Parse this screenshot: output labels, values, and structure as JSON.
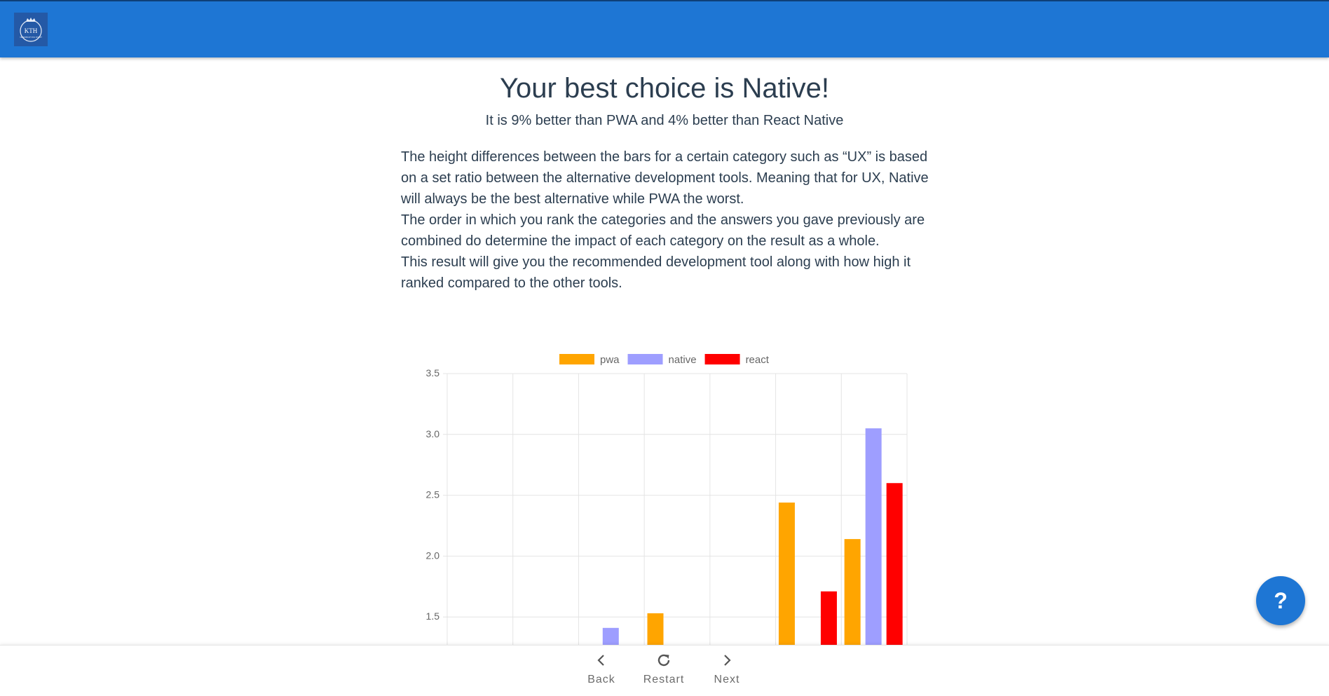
{
  "header": {
    "logo_text": "KTH",
    "logo_subtext": "VETENSKAP OCH KONST",
    "colors": {
      "bar": "#1e76d4",
      "logo_bg": "#2459a6"
    }
  },
  "main": {
    "title": "Your best choice is Native!",
    "subtitle": "It is 9% better than PWA and 4% better than React Native",
    "paragraphs": [
      "The height differences between the bars for a certain category such as “UX” is based on a set ratio between the alternative development tools. Meaning that for UX, Native will always be the best alternative while PWA the worst.",
      "The order in which you rank the categories and the answers you gave previously are combined do determine the impact of each category on the result as a whole.",
      "This result will give you the recommended development tool along with how high it ranked compared to the other tools."
    ]
  },
  "chart_data": {
    "type": "bar",
    "groups": 7,
    "series": [
      {
        "name": "pwa",
        "color": "#ffa500",
        "values": [
          null,
          null,
          null,
          1.53,
          null,
          2.44,
          2.14
        ]
      },
      {
        "name": "native",
        "color": "#9e9eff",
        "values": [
          null,
          null,
          1.41,
          null,
          null,
          null,
          3.05
        ]
      },
      {
        "name": "react",
        "color": "#ff0000",
        "values": [
          null,
          null,
          null,
          null,
          null,
          1.71,
          2.6
        ]
      }
    ],
    "yticks": [
      "3.5",
      "3.0",
      "2.5",
      "2.0",
      "1.5"
    ],
    "ylim_visible": [
      1.25,
      3.5
    ],
    "grid": true,
    "legend_position": "top"
  },
  "footer": {
    "back_label": "Back",
    "restart_label": "Restart",
    "next_label": "Next"
  },
  "help": {
    "label": "?"
  }
}
